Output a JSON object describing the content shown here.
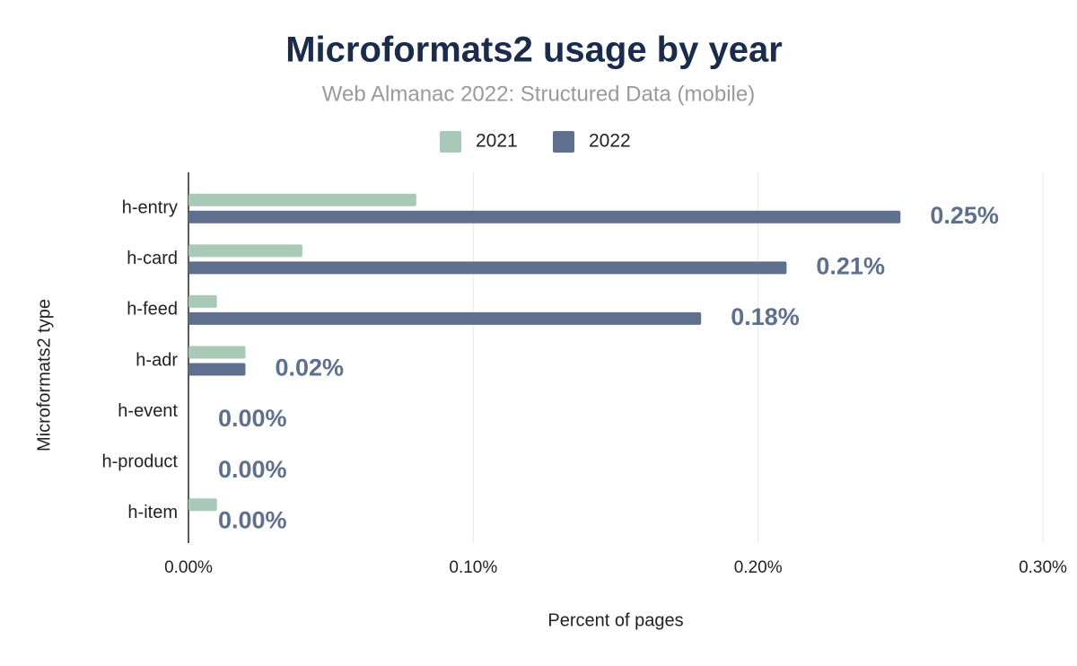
{
  "chart_data": {
    "type": "hbar",
    "title": "Microformats2 usage by year",
    "subtitle": "Web Almanac 2022: Structured Data (mobile)",
    "x_label": "Percent of pages",
    "y_label": "Microformats2 type",
    "categories": [
      "h-entry",
      "h-card",
      "h-feed",
      "h-adr",
      "h-event",
      "h-product",
      "h-item"
    ],
    "series": [
      {
        "name": "2021",
        "color": "#a8c9b8",
        "values": [
          0.08,
          0.04,
          0.01,
          0.02,
          0,
          0,
          0.01
        ]
      },
      {
        "name": "2022",
        "color": "#5f6f8e",
        "values": [
          0.25,
          0.21,
          0.18,
          0.02,
          0,
          0,
          0
        ],
        "value_labels": [
          "0.25%",
          "0.21%",
          "0.18%",
          "0.02%",
          "0.00%",
          "0.00%",
          "0.00%"
        ]
      }
    ],
    "xlim": [
      0,
      0.3
    ],
    "xticks": [
      {
        "value": 0,
        "label": "0.00%"
      },
      {
        "value": 0.1,
        "label": "0.10%"
      },
      {
        "value": 0.2,
        "label": "0.20%"
      },
      {
        "value": 0.3,
        "label": "0.30%"
      }
    ],
    "grid": true,
    "legend": "top"
  }
}
